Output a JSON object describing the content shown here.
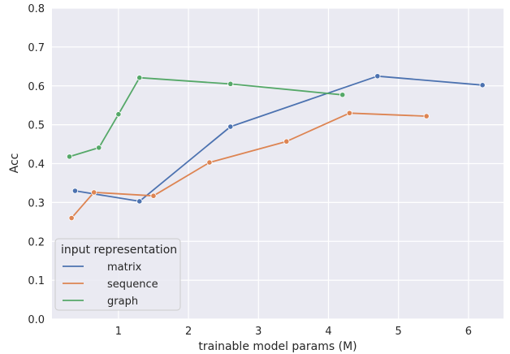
{
  "chart_data": {
    "type": "line",
    "xlabel": "trainable model params (M)",
    "ylabel": "Acc",
    "xlim": [
      0.05,
      6.5
    ],
    "ylim": [
      0.0,
      0.8
    ],
    "xticks": [
      1,
      2,
      3,
      4,
      5,
      6
    ],
    "yticks": [
      0.0,
      0.1,
      0.2,
      0.3,
      0.4,
      0.5,
      0.6,
      0.7,
      0.8
    ],
    "grid": true,
    "legend": {
      "title": "input representation",
      "placement": "lower-left"
    },
    "series": [
      {
        "name": "matrix",
        "color": "#4c72b0",
        "x": [
          0.38,
          1.3,
          2.6,
          4.7,
          6.2
        ],
        "y": [
          0.33,
          0.303,
          0.495,
          0.625,
          0.602
        ]
      },
      {
        "name": "sequence",
        "color": "#dd8452",
        "x": [
          0.33,
          0.65,
          1.5,
          2.3,
          3.4,
          4.3,
          5.4
        ],
        "y": [
          0.26,
          0.326,
          0.317,
          0.403,
          0.457,
          0.53,
          0.522
        ]
      },
      {
        "name": "graph",
        "color": "#55a868",
        "x": [
          0.3,
          0.72,
          1.0,
          1.3,
          2.6,
          4.2
        ],
        "y": [
          0.418,
          0.441,
          0.527,
          0.621,
          0.605,
          0.577
        ]
      }
    ]
  }
}
